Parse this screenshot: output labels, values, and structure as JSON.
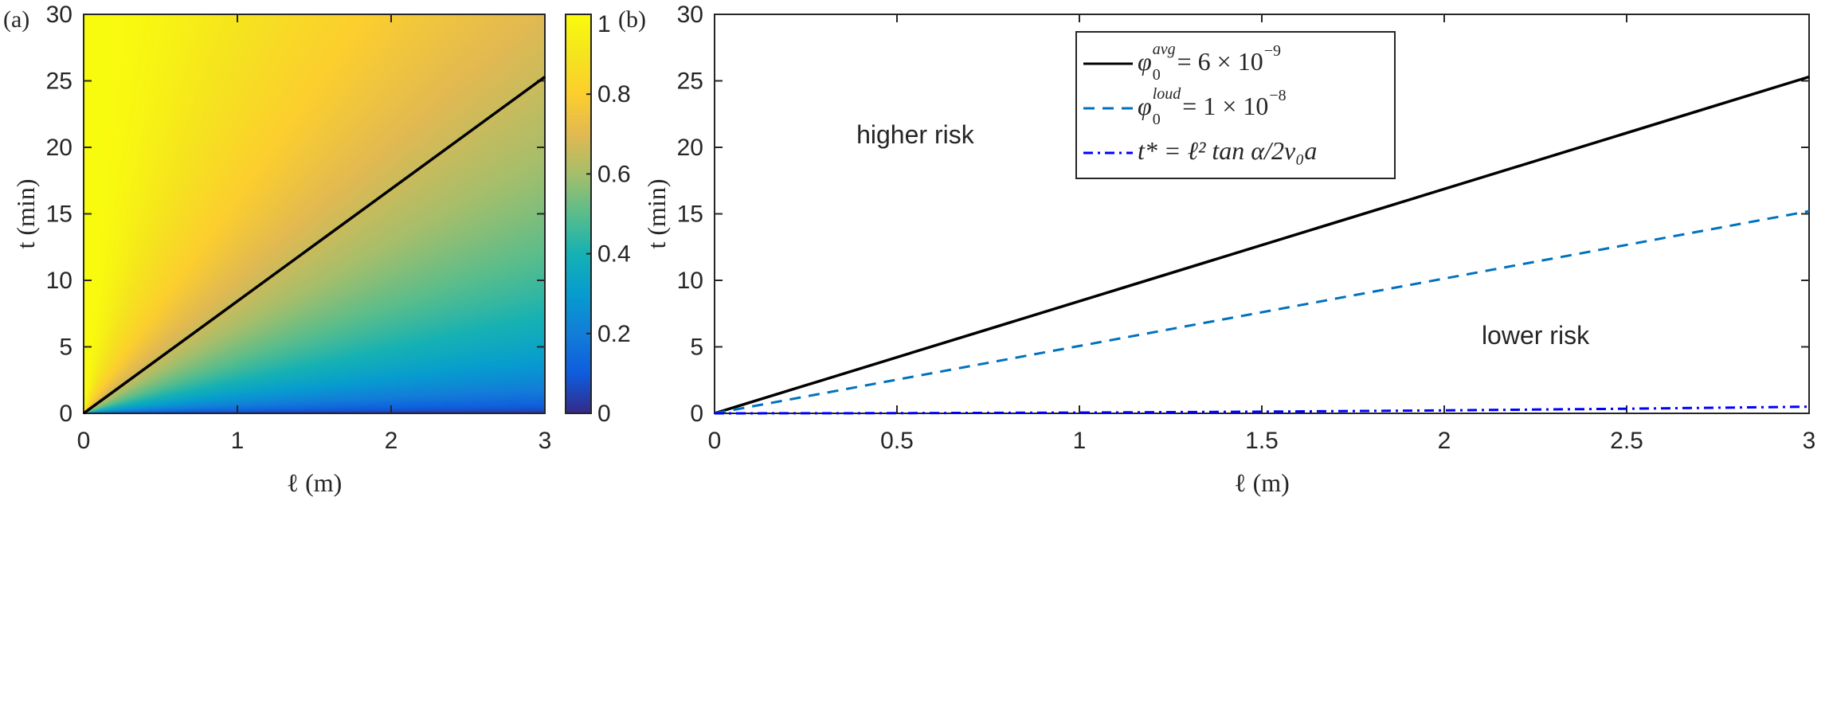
{
  "chart_data": [
    {
      "type": "heatmap",
      "panel_label": "(a)",
      "xlabel": "ℓ (m)",
      "ylabel": "t (min)",
      "xlim": [
        0,
        3
      ],
      "ylim": [
        0,
        30
      ],
      "xticks": [
        "0",
        "1",
        "2",
        "3"
      ],
      "yticks": [
        "0",
        "5",
        "10",
        "15",
        "20",
        "25",
        "30"
      ],
      "colorbar": {
        "range": [
          0,
          1
        ],
        "ticks": [
          "0",
          "0.2",
          "0.4",
          "0.6",
          "0.8",
          "1"
        ],
        "colormap": "parula"
      },
      "overlay_line": {
        "name": "threshold",
        "color": "#000000",
        "points": [
          [
            0,
            0
          ],
          [
            3,
            25.3
          ]
        ]
      },
      "field_description": "value increases with t/ℓ ratio; ~0.65 along overlay line"
    },
    {
      "type": "line",
      "panel_label": "(b)",
      "xlabel": "ℓ (m)",
      "ylabel": "t (min)",
      "xlim": [
        0,
        3
      ],
      "ylim": [
        0,
        30
      ],
      "xticks": [
        "0",
        "0.5",
        "1",
        "1.5",
        "2",
        "2.5",
        "3"
      ],
      "yticks": [
        "0",
        "5",
        "10",
        "15",
        "20",
        "25",
        "30"
      ],
      "legend_position": "top-left",
      "series": [
        {
          "name": "φ0^avg = 6 × 10^-9",
          "label_main": "φ",
          "label_sub": "0",
          "label_sup": "avg",
          "label_rest": " = 6 × 10",
          "label_exp": "−9",
          "color": "#000000",
          "style": "solid",
          "points": [
            [
              0,
              0
            ],
            [
              3,
              25.3
            ]
          ]
        },
        {
          "name": "φ0^loud = 1 × 10^-8",
          "label_main": "φ",
          "label_sub": "0",
          "label_sup": "loud",
          "label_rest": " = 1 × 10",
          "label_exp": "−8",
          "color": "#0072BD",
          "style": "dashed",
          "points": [
            [
              0,
              0
            ],
            [
              3,
              15.2
            ]
          ]
        },
        {
          "name": "t* = ℓ² tan α / 2v0a",
          "label_text": "t* = ℓ² tan α/2v₀a",
          "color": "#0000FF",
          "style": "dashdot",
          "points": [
            [
              0,
              0
            ],
            [
              0.5,
              0.014
            ],
            [
              1,
              0.056
            ],
            [
              1.5,
              0.125
            ],
            [
              2,
              0.222
            ],
            [
              2.5,
              0.347
            ],
            [
              3,
              0.5
            ]
          ]
        }
      ],
      "annotations": [
        {
          "text": "higher risk",
          "x": 0.55,
          "y": 20.3
        },
        {
          "text": "lower risk",
          "x": 2.25,
          "y": 5.2
        }
      ]
    }
  ]
}
